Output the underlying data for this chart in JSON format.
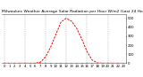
{
  "title": "Milwaukee Weather Average Solar Radiation per Hour W/m2 (Last 24 Hours)",
  "hours": [
    0,
    1,
    2,
    3,
    4,
    5,
    6,
    7,
    8,
    9,
    10,
    11,
    12,
    13,
    14,
    15,
    16,
    17,
    18,
    19,
    20,
    21,
    22,
    23
  ],
  "values": [
    0,
    0,
    0,
    0,
    0,
    0,
    0,
    10,
    70,
    180,
    320,
    460,
    500,
    470,
    390,
    270,
    130,
    35,
    3,
    0,
    0,
    0,
    0,
    0
  ],
  "line_color": "#ff0000",
  "bg_color": "#ffffff",
  "grid_color": "#999999",
  "ylim": [
    0,
    550
  ],
  "xlim": [
    -0.5,
    23.5
  ],
  "yticks": [
    0,
    100,
    200,
    300,
    400,
    500
  ],
  "title_fontsize": 3.2,
  "tick_fontsize": 2.8,
  "line_width": 0.7
}
